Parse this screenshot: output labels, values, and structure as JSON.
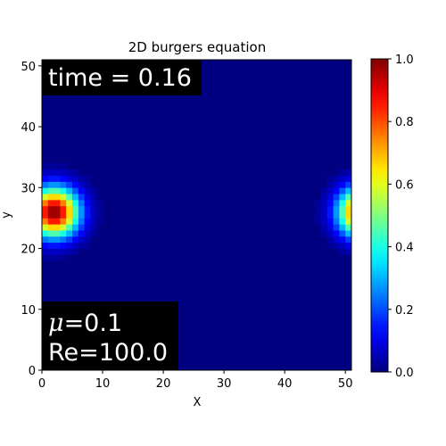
{
  "chart_data": {
    "type": "heatmap",
    "title": "2D burgers equation",
    "xlabel": "X",
    "ylabel": "y",
    "xlim": [
      0,
      51
    ],
    "ylim": [
      0,
      51
    ],
    "xticks": [
      0,
      10,
      20,
      30,
      40,
      50
    ],
    "yticks": [
      0,
      10,
      20,
      30,
      40,
      50
    ],
    "grid": false,
    "colormap": "jet",
    "colorbar": {
      "ticks": [
        0.0,
        0.2,
        0.4,
        0.6,
        0.8,
        1.0
      ],
      "tick_labels": [
        "0.0",
        "0.2",
        "0.4",
        "0.6",
        "0.8",
        "1.0"
      ],
      "range": [
        0.0,
        1.0
      ]
    },
    "grid_size": {
      "nx": 51,
      "ny": 51
    },
    "field": {
      "description_of_values": "Gaussian pulse wrapping periodically across the x boundary",
      "peak": 1.0,
      "center_x": 2.0,
      "center_y": 26.0,
      "sigma": 2.8,
      "period_x": 51
    },
    "annotations": {
      "time": "time = 0.16",
      "mu_symbol": "μ",
      "mu_value": "=0.1",
      "re": "Re=100.0"
    }
  }
}
